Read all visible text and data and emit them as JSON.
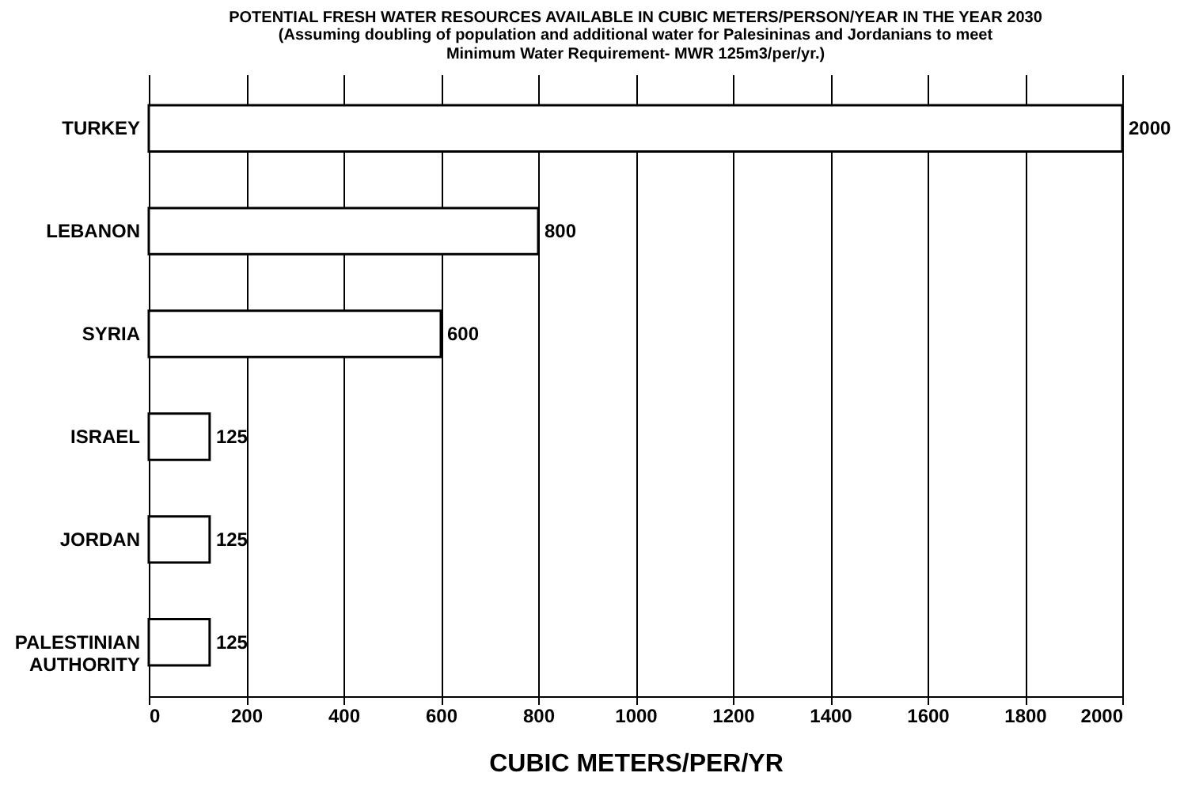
{
  "chart_data": {
    "type": "bar",
    "orientation": "horizontal",
    "title": "POTENTIAL FRESH WATER RESOURCES AVAILABLE IN CUBIC METERS/PERSON/YEAR IN  THE YEAR 2030",
    "subtitle": "(Assuming doubling of population and additional water for Palesininas and Jordanians to meet Minimum Water Requirement- MWR 125m3/per/yr.)",
    "xlabel": "CUBIC METERS/PER/YR",
    "categories": [
      "TURKEY",
      "LEBANON",
      "SYRIA",
      "ISRAEL",
      "JORDAN",
      "PALESTINIAN AUTHORITY"
    ],
    "values": [
      2000,
      800,
      600,
      125,
      125,
      125
    ],
    "color": "#ffffff",
    "data_labels": true,
    "grid": "x",
    "xlim": [
      0,
      2000
    ],
    "xticks": [
      0,
      200,
      400,
      600,
      800,
      1000,
      1200,
      1400,
      1600,
      1800,
      2000
    ]
  }
}
